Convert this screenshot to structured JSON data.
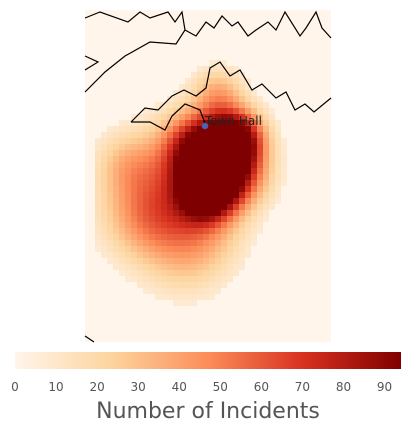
{
  "map": {
    "marker_label": "Town Hall",
    "marker_color": "#4c64b0",
    "coastline_color": "#000000",
    "heat_colors": [
      "#fff5eb",
      "#fdd49e",
      "#fc8d59",
      "#d7301f",
      "#7f0000"
    ],
    "heat_grid_note": ""
  },
  "colorbar": {
    "min": 0,
    "max": 94,
    "ticks": [
      "0",
      "10",
      "20",
      "30",
      "40",
      "50",
      "60",
      "70",
      "80",
      "90"
    ],
    "label": "Number of Incidents",
    "colormap": "OrRd"
  }
}
